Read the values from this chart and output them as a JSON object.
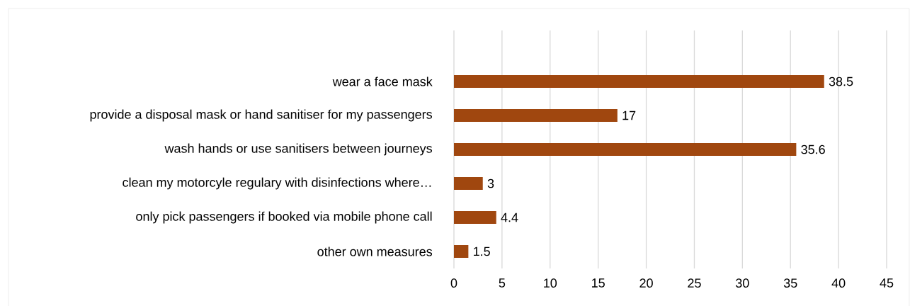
{
  "chart_data": {
    "type": "bar",
    "orientation": "horizontal",
    "categories": [
      "wear a face mask",
      "provide a disposal mask or hand sanitiser for my passengers",
      "wash hands or use sanitisers between journeys",
      "clean my motorcyle regulary with disinfections where…",
      "only pick passengers if booked via mobile phone call",
      "other own measures"
    ],
    "values": [
      38.5,
      17,
      35.6,
      3,
      4.4,
      1.5
    ],
    "color": "#a0470f",
    "xlim": [
      0,
      45
    ],
    "xticks": [
      0,
      5,
      10,
      15,
      20,
      25,
      30,
      35,
      40,
      45
    ],
    "grid": "x",
    "data_labels": true
  }
}
